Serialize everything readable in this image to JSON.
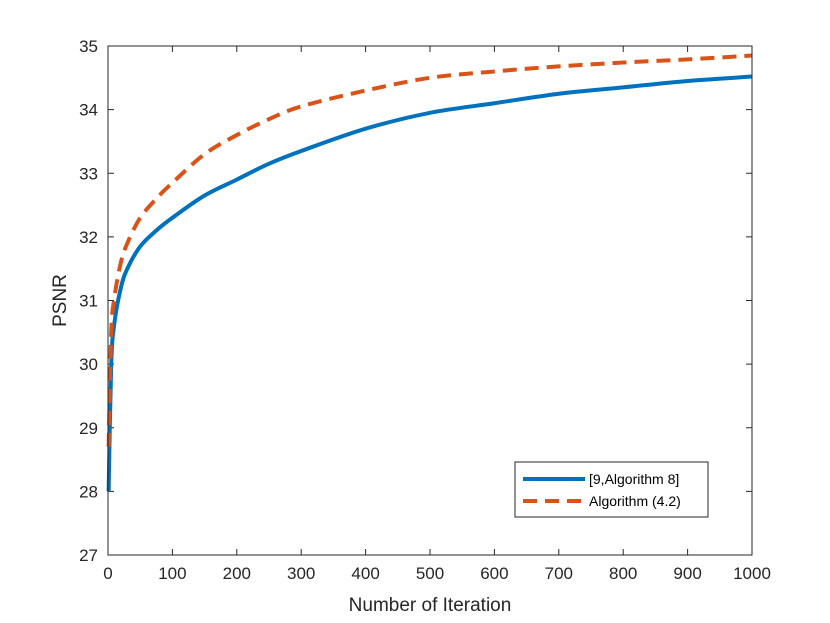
{
  "chart_data": {
    "type": "line",
    "title": "",
    "xlabel": "Number of Iteration",
    "ylabel": "PSNR",
    "xlim": [
      0,
      1000
    ],
    "ylim": [
      27,
      35
    ],
    "xticks": [
      0,
      100,
      200,
      300,
      400,
      500,
      600,
      700,
      800,
      900,
      1000
    ],
    "yticks": [
      27,
      28,
      29,
      30,
      31,
      32,
      33,
      34,
      35
    ],
    "grid": false,
    "legend_position": "bottom-right",
    "series": [
      {
        "name": "[9,Algorithm 8]",
        "color": "#0072BD",
        "style": "solid",
        "x": [
          1,
          5,
          10,
          20,
          30,
          50,
          75,
          100,
          150,
          200,
          250,
          300,
          400,
          500,
          600,
          700,
          800,
          900,
          1000
        ],
        "y": [
          28.0,
          30.0,
          30.65,
          31.2,
          31.5,
          31.85,
          32.1,
          32.3,
          32.65,
          32.9,
          33.15,
          33.35,
          33.7,
          33.95,
          34.1,
          34.25,
          34.35,
          34.45,
          34.52
        ]
      },
      {
        "name": "Algorithm (4.2)",
        "color": "#D95319",
        "style": "dashed",
        "x": [
          1,
          5,
          10,
          20,
          30,
          50,
          75,
          100,
          150,
          200,
          250,
          300,
          400,
          500,
          600,
          700,
          800,
          900,
          1000
        ],
        "y": [
          28.7,
          30.5,
          31.05,
          31.6,
          31.9,
          32.3,
          32.6,
          32.85,
          33.3,
          33.6,
          33.85,
          34.05,
          34.3,
          34.5,
          34.6,
          34.68,
          34.74,
          34.79,
          34.85
        ]
      }
    ]
  }
}
